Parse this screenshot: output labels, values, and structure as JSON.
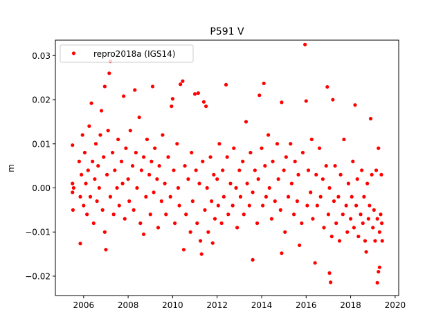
{
  "chart_data": {
    "type": "scatter",
    "title": "P591 V",
    "xlabel": "",
    "ylabel": "m",
    "xlim": [
      2004.73,
      2020.16
    ],
    "ylim": [
      -0.0244,
      0.0335
    ],
    "xticks": [
      2006,
      2008,
      2010,
      2012,
      2014,
      2016,
      2018,
      2020
    ],
    "xtick_labels": [
      "2006",
      "2008",
      "2010",
      "2012",
      "2014",
      "2016",
      "2018",
      "2020"
    ],
    "yticks": [
      -0.02,
      -0.01,
      0.0,
      0.01,
      0.02,
      0.03
    ],
    "ytick_labels": [
      "−0.02",
      "−0.01",
      "0.00",
      "0.01",
      "0.02",
      "0.03"
    ],
    "grid": false,
    "legend": {
      "placement": "top-left",
      "entries": [
        "repro2018a (IGS14)"
      ]
    },
    "series": [
      {
        "name": "repro2018a (IGS14)",
        "color": "#ff0000",
        "marker": "circle",
        "points": [
          [
            2015.95,
            0.0325
          ],
          [
            2007.2,
            0.0287
          ],
          [
            2007.15,
            0.026
          ],
          [
            2006.95,
            0.023
          ],
          [
            2007.8,
            0.0208
          ],
          [
            2008.3,
            0.0222
          ],
          [
            2009.1,
            0.023
          ],
          [
            2010.45,
            0.0242
          ],
          [
            2010.35,
            0.0235
          ],
          [
            2010.0,
            0.0202
          ],
          [
            2011.0,
            0.0213
          ],
          [
            2011.15,
            0.0215
          ],
          [
            2012.4,
            0.0234
          ],
          [
            2014.1,
            0.0237
          ],
          [
            2013.9,
            0.021
          ],
          [
            2014.9,
            0.0194
          ],
          [
            2016.0,
            0.0197
          ],
          [
            2016.95,
            0.0229
          ],
          [
            2017.2,
            0.02
          ],
          [
            2018.2,
            0.0188
          ],
          [
            2018.9,
            0.0157
          ],
          [
            2006.35,
            0.0192
          ],
          [
            2006.8,
            0.0175
          ],
          [
            2011.4,
            0.0195
          ],
          [
            2011.5,
            0.0185
          ],
          [
            2009.95,
            0.0185
          ],
          [
            2005.85,
            -0.0126
          ],
          [
            2007.0,
            -0.014
          ],
          [
            2010.5,
            -0.014
          ],
          [
            2011.3,
            -0.015
          ],
          [
            2013.6,
            -0.0163
          ],
          [
            2014.9,
            -0.0148
          ],
          [
            2016.4,
            -0.017
          ],
          [
            2017.05,
            -0.0193
          ],
          [
            2017.1,
            -0.0214
          ],
          [
            2019.2,
            -0.0215
          ],
          [
            2019.25,
            -0.019
          ],
          [
            2019.3,
            -0.018
          ],
          [
            2015.7,
            -0.013
          ],
          [
            2008.7,
            -0.0105
          ],
          [
            2011.8,
            -0.0125
          ],
          [
            2018.7,
            -0.0145
          ],
          [
            2005.5,
            0.0097
          ],
          [
            2005.5,
            0.001
          ],
          [
            2005.5,
            -0.001
          ],
          [
            2005.52,
            -0.005
          ],
          [
            2005.55,
            0.0
          ],
          [
            2005.8,
            0.006
          ],
          [
            2005.85,
            -0.002
          ],
          [
            2005.9,
            0.003
          ],
          [
            2005.95,
            0.012
          ],
          [
            2006.0,
            -0.004
          ],
          [
            2006.05,
            0.008
          ],
          [
            2006.1,
            0.001
          ],
          [
            2006.15,
            -0.006
          ],
          [
            2006.2,
            0.004
          ],
          [
            2006.25,
            0.014
          ],
          [
            2006.3,
            -0.002
          ],
          [
            2006.4,
            0.006
          ],
          [
            2006.45,
            -0.008
          ],
          [
            2006.5,
            0.002
          ],
          [
            2006.55,
            0.01
          ],
          [
            2006.6,
            -0.003
          ],
          [
            2006.65,
            0.005
          ],
          [
            2006.7,
            0.0
          ],
          [
            2006.75,
            0.012
          ],
          [
            2006.85,
            -0.005
          ],
          [
            2006.9,
            0.007
          ],
          [
            2006.95,
            -0.01
          ],
          [
            2007.05,
            0.003
          ],
          [
            2007.1,
            0.013
          ],
          [
            2007.2,
            -0.002
          ],
          [
            2007.3,
            0.008
          ],
          [
            2007.35,
            -0.006
          ],
          [
            2007.4,
            0.004
          ],
          [
            2007.5,
            0.0
          ],
          [
            2007.55,
            0.011
          ],
          [
            2007.6,
            -0.004
          ],
          [
            2007.7,
            0.006
          ],
          [
            2007.75,
            0.001
          ],
          [
            2007.85,
            -0.007
          ],
          [
            2007.9,
            0.009
          ],
          [
            2008.0,
            0.002
          ],
          [
            2008.05,
            -0.003
          ],
          [
            2008.1,
            0.013
          ],
          [
            2008.2,
            0.005
          ],
          [
            2008.25,
            -0.005
          ],
          [
            2008.35,
            0.008
          ],
          [
            2008.4,
            0.0
          ],
          [
            2008.5,
            0.016
          ],
          [
            2008.55,
            -0.008
          ],
          [
            2008.6,
            0.004
          ],
          [
            2008.7,
            0.007
          ],
          [
            2008.8,
            -0.002
          ],
          [
            2008.85,
            0.011
          ],
          [
            2008.95,
            0.003
          ],
          [
            2009.0,
            -0.006
          ],
          [
            2009.05,
            0.006
          ],
          [
            2009.15,
            -0.001
          ],
          [
            2009.2,
            0.009
          ],
          [
            2009.3,
            0.002
          ],
          [
            2009.35,
            -0.009
          ],
          [
            2009.4,
            0.005
          ],
          [
            2009.5,
            -0.003
          ],
          [
            2009.55,
            0.012
          ],
          [
            2009.65,
            0.001
          ],
          [
            2009.7,
            -0.006
          ],
          [
            2009.8,
            0.007
          ],
          [
            2009.9,
            -0.002
          ],
          [
            2010.05,
            0.004
          ],
          [
            2010.1,
            -0.008
          ],
          [
            2010.2,
            0.01
          ],
          [
            2010.25,
            0.0
          ],
          [
            2010.3,
            -0.004
          ],
          [
            2010.55,
            0.005
          ],
          [
            2010.6,
            -0.006
          ],
          [
            2010.7,
            0.002
          ],
          [
            2010.8,
            -0.01
          ],
          [
            2010.85,
            0.008
          ],
          [
            2010.9,
            -0.003
          ],
          [
            2011.05,
            0.004
          ],
          [
            2011.1,
            -0.008
          ],
          [
            2011.2,
            0.001
          ],
          [
            2011.25,
            -0.012
          ],
          [
            2011.35,
            0.006
          ],
          [
            2011.45,
            -0.005
          ],
          [
            2011.55,
            0.0
          ],
          [
            2011.6,
            -0.01
          ],
          [
            2011.7,
            0.007
          ],
          [
            2011.75,
            -0.003
          ],
          [
            2011.85,
            0.003
          ],
          [
            2011.9,
            -0.007
          ],
          [
            2012.0,
            0.002
          ],
          [
            2012.05,
            -0.004
          ],
          [
            2012.1,
            0.01
          ],
          [
            2012.2,
            -0.008
          ],
          [
            2012.25,
            0.004
          ],
          [
            2012.3,
            -0.002
          ],
          [
            2012.45,
            0.007
          ],
          [
            2012.5,
            -0.006
          ],
          [
            2012.6,
            0.001
          ],
          [
            2012.7,
            -0.004
          ],
          [
            2012.75,
            0.009
          ],
          [
            2012.85,
            0.0
          ],
          [
            2012.9,
            -0.009
          ],
          [
            2013.0,
            0.004
          ],
          [
            2013.05,
            -0.002
          ],
          [
            2013.15,
            0.006
          ],
          [
            2013.2,
            -0.006
          ],
          [
            2013.3,
            0.015
          ],
          [
            2013.35,
            0.001
          ],
          [
            2013.45,
            -0.004
          ],
          [
            2013.5,
            0.008
          ],
          [
            2013.6,
            -0.001
          ],
          [
            2013.7,
            0.004
          ],
          [
            2013.8,
            -0.008
          ],
          [
            2013.85,
            0.002
          ],
          [
            2014.0,
            0.009
          ],
          [
            2014.05,
            -0.004
          ],
          [
            2014.15,
            0.005
          ],
          [
            2014.2,
            -0.002
          ],
          [
            2014.3,
            0.012
          ],
          [
            2014.35,
            0.0
          ],
          [
            2014.45,
            -0.007
          ],
          [
            2014.5,
            0.006
          ],
          [
            2014.6,
            -0.003
          ],
          [
            2014.7,
            0.01
          ],
          [
            2014.75,
            0.002
          ],
          [
            2014.85,
            -0.005
          ],
          [
            2015.0,
            0.004
          ],
          [
            2015.05,
            -0.01
          ],
          [
            2015.1,
            0.007
          ],
          [
            2015.2,
            -0.002
          ],
          [
            2015.3,
            0.01
          ],
          [
            2015.35,
            0.001
          ],
          [
            2015.45,
            -0.006
          ],
          [
            2015.5,
            0.006
          ],
          [
            2015.6,
            -0.003
          ],
          [
            2015.65,
            0.003
          ],
          [
            2015.8,
            -0.008
          ],
          [
            2015.85,
            0.008
          ],
          [
            2016.05,
            -0.004
          ],
          [
            2016.1,
            0.004
          ],
          [
            2016.2,
            -0.001
          ],
          [
            2016.25,
            0.011
          ],
          [
            2016.3,
            -0.007
          ],
          [
            2016.45,
            0.003
          ],
          [
            2016.5,
            -0.004
          ],
          [
            2016.6,
            0.009
          ],
          [
            2016.65,
            -0.002
          ],
          [
            2016.75,
            0.002
          ],
          [
            2016.8,
            -0.009
          ],
          [
            2016.9,
            0.005
          ],
          [
            2017.0,
            -0.006
          ],
          [
            2017.05,
            0.0
          ],
          [
            2017.15,
            -0.011
          ],
          [
            2017.25,
            -0.003
          ],
          [
            2017.3,
            0.005
          ],
          [
            2017.35,
            -0.008
          ],
          [
            2017.45,
            -0.002
          ],
          [
            2017.5,
            -0.012
          ],
          [
            2017.55,
            0.003
          ],
          [
            2017.65,
            -0.006
          ],
          [
            2017.7,
            0.011
          ],
          [
            2017.8,
            -0.004
          ],
          [
            2017.85,
            -0.01
          ],
          [
            2017.9,
            0.001
          ],
          [
            2018.0,
            -0.007
          ],
          [
            2018.05,
            -0.002
          ],
          [
            2018.1,
            0.006
          ],
          [
            2018.15,
            -0.009
          ],
          [
            2018.25,
            -0.004
          ],
          [
            2018.3,
            0.002
          ],
          [
            2018.35,
            -0.011
          ],
          [
            2018.45,
            -0.006
          ],
          [
            2018.5,
            0.004
          ],
          [
            2018.55,
            -0.008
          ],
          [
            2018.6,
            -0.002
          ],
          [
            2018.65,
            -0.012
          ],
          [
            2018.75,
            0.001
          ],
          [
            2018.8,
            -0.007
          ],
          [
            2018.85,
            -0.004
          ],
          [
            2018.95,
            0.003
          ],
          [
            2019.0,
            -0.009
          ],
          [
            2019.05,
            -0.005
          ],
          [
            2019.1,
            -0.012
          ],
          [
            2019.15,
            0.004
          ],
          [
            2019.2,
            -0.007
          ],
          [
            2019.25,
            0.009
          ],
          [
            2019.3,
            -0.01
          ],
          [
            2019.35,
            -0.006
          ],
          [
            2019.38,
            0.003
          ],
          [
            2019.4,
            -0.008
          ],
          [
            2019.42,
            -0.012
          ]
        ]
      }
    ]
  }
}
